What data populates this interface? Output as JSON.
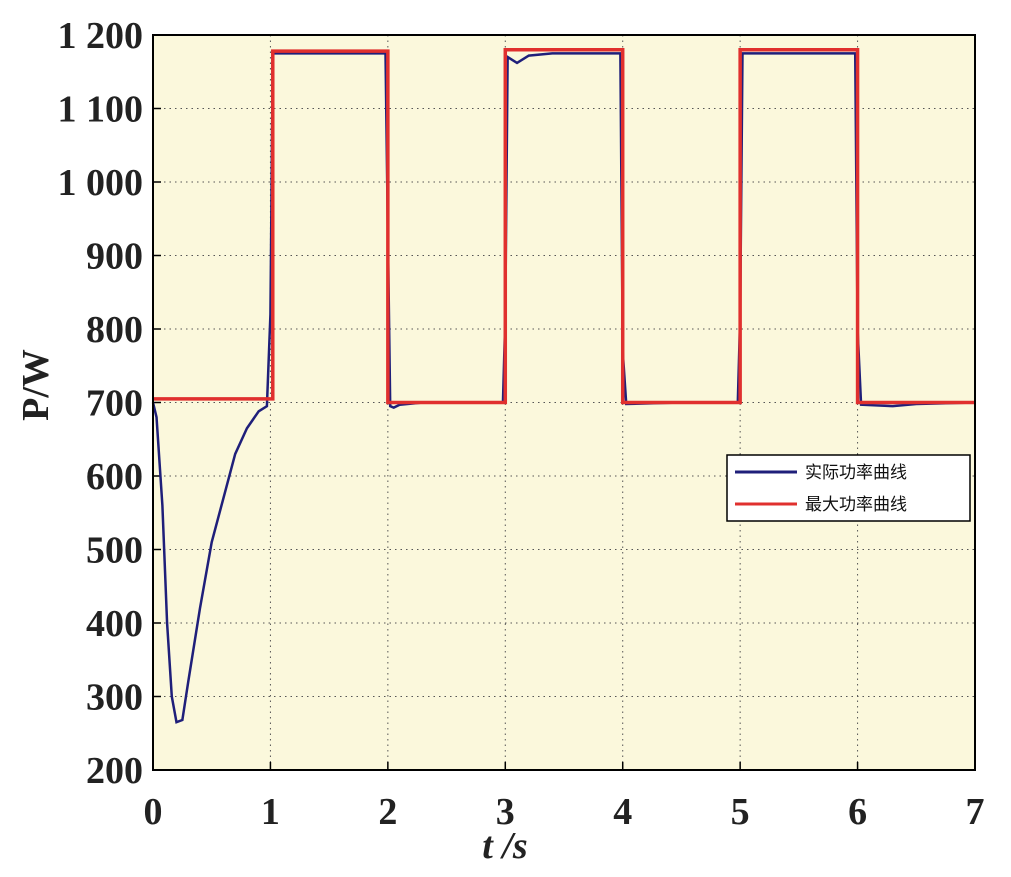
{
  "chart_data": {
    "type": "line",
    "xlabel": "t /s",
    "ylabel": "P/W",
    "xlim": [
      0,
      7
    ],
    "xticks": [
      0,
      1,
      2,
      3,
      4,
      5,
      6,
      7
    ],
    "ylim": [
      200,
      1200
    ],
    "yticks": [
      200,
      300,
      400,
      500,
      600,
      700,
      800,
      900,
      {
        "value": 1000,
        "label": "1 000"
      },
      {
        "value": 1100,
        "label": "1 100"
      },
      {
        "value": 1200,
        "label": "1 200"
      }
    ],
    "grid": true,
    "legend": "right",
    "background": "#fbf8dc",
    "series": [
      {
        "name": "实际功率曲线",
        "color": "#1f1f7a",
        "x": [
          0,
          0.03,
          0.08,
          0.12,
          0.16,
          0.2,
          0.25,
          0.3,
          0.4,
          0.5,
          0.6,
          0.7,
          0.8,
          0.9,
          0.97,
          1.0,
          1.02,
          1.1,
          1.5,
          1.98,
          2.0,
          2.02,
          2.05,
          2.1,
          2.3,
          2.98,
          3.0,
          3.02,
          3.1,
          3.2,
          3.4,
          3.98,
          4.0,
          4.03,
          4.5,
          4.98,
          5.0,
          5.02,
          5.5,
          5.98,
          6.0,
          6.03,
          6.3,
          6.5,
          7.0
        ],
        "values": [
          700,
          680,
          560,
          400,
          300,
          265,
          268,
          320,
          420,
          510,
          570,
          630,
          665,
          688,
          695,
          820,
          1175,
          1175,
          1175,
          1175,
          930,
          695,
          693,
          697,
          700,
          700,
          815,
          1170,
          1162,
          1172,
          1175,
          1175,
          770,
          698,
          700,
          700,
          815,
          1175,
          1175,
          1175,
          800,
          697,
          695,
          698,
          700
        ]
      },
      {
        "name": "最大功率曲线",
        "color": "#e0302e",
        "x": [
          0,
          1.02,
          1.02,
          2.0,
          2.0,
          3.0,
          3.0,
          4.0,
          4.0,
          5.0,
          5.0,
          6.0,
          6.0,
          7.0
        ],
        "values": [
          705,
          705,
          1178,
          1178,
          700,
          700,
          1180,
          1180,
          700,
          700,
          1180,
          1180,
          700,
          700
        ]
      }
    ]
  }
}
